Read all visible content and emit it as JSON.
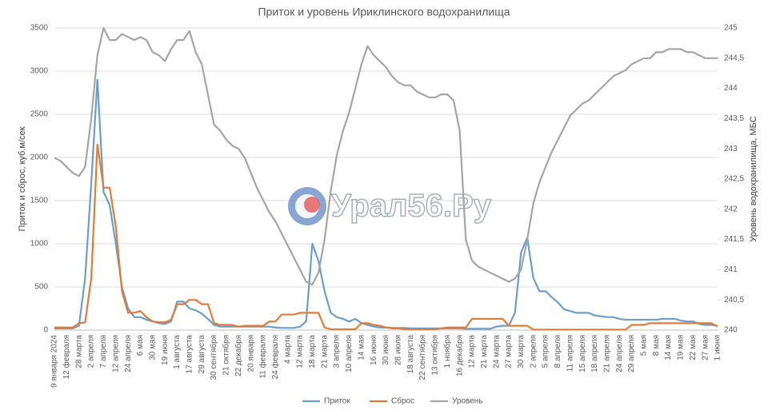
{
  "chart_data": {
    "type": "line",
    "title": "Приток и уровень Ириклинского водохранилища",
    "y_label": "Приток и сброс, куб.м/сек",
    "y2_label": "Уровень водохранилища, МБС",
    "watermark": "Урал56.Ру",
    "grid": true,
    "legend": "bottom",
    "categories": [
      "9 января 2024",
      null,
      "12 февраля",
      null,
      "28 марта",
      null,
      "2 апреля",
      null,
      "7 апреля",
      null,
      "12 апреля",
      null,
      "24 апреля",
      null,
      "6 мая",
      null,
      "30 мая",
      null,
      "19 июня",
      null,
      "1 августа",
      null,
      "17 августа",
      null,
      "29 августа",
      null,
      "30 сентября",
      null,
      "21 октября",
      null,
      "22 декабря",
      null,
      "20 января",
      null,
      "11 февраля",
      null,
      "24 февраля",
      null,
      "4 марта",
      null,
      "12 марта",
      null,
      "18 марта",
      null,
      "21 марта",
      null,
      "3 апреля",
      null,
      "10 апреля",
      null,
      "14 мая",
      null,
      "16 июня",
      null,
      "30 июня",
      null,
      "28 июля",
      null,
      "18 августа",
      null,
      "22 сентября",
      null,
      "13 октября",
      null,
      "1 ноября",
      null,
      "16 декабря",
      null,
      "12 марта",
      null,
      "21 марта",
      null,
      "24 марта",
      null,
      "27 марта",
      null,
      "30 марта",
      null,
      "2 апреля",
      null,
      "5 апреля",
      null,
      "8 апреля",
      null,
      "11 апреля",
      null,
      "15 апреля",
      null,
      "18 апреля",
      null,
      "21 апреля",
      null,
      "24 апреля",
      null,
      "29 апреля",
      null,
      "5 мая",
      null,
      "8 мая",
      null,
      "14 мая",
      null,
      "19 мая",
      null,
      "22 мая",
      null,
      "27 мая",
      null,
      "1 июня"
    ],
    "ylim": [
      0,
      3500
    ],
    "yticks": [
      0,
      500,
      1000,
      1500,
      2000,
      2500,
      3000,
      3500
    ],
    "y2lim": [
      240,
      245
    ],
    "y2ticks": [
      240,
      {
        "value": 240.5,
        "label": "240,5"
      },
      241,
      {
        "value": 241.5,
        "label": "241,5"
      },
      242,
      {
        "value": 242.5,
        "label": "242,5"
      },
      243,
      {
        "value": 243.5,
        "label": "243,5"
      },
      244,
      {
        "value": 244.5,
        "label": "244,5"
      },
      245
    ],
    "series": [
      {
        "name": "Приток",
        "color": "#6a9fcb",
        "values": [
          20,
          20,
          20,
          20,
          50,
          600,
          1700,
          2900,
          1600,
          1450,
          1000,
          500,
          250,
          150,
          150,
          120,
          100,
          80,
          70,
          100,
          330,
          330,
          250,
          230,
          190,
          130,
          60,
          40,
          40,
          40,
          40,
          40,
          40,
          40,
          40,
          40,
          30,
          25,
          25,
          25,
          40,
          100,
          1000,
          800,
          450,
          200,
          150,
          130,
          100,
          130,
          80,
          60,
          40,
          30,
          30,
          25,
          25,
          25,
          20,
          20,
          20,
          20,
          20,
          20,
          20,
          20,
          20,
          15,
          15,
          15,
          15,
          15,
          40,
          50,
          50,
          200,
          900,
          1070,
          600,
          450,
          450,
          380,
          320,
          240,
          220,
          200,
          200,
          200,
          170,
          160,
          150,
          150,
          130,
          120,
          120,
          120,
          120,
          120,
          120,
          130,
          130,
          130,
          110,
          100,
          100,
          70,
          60,
          60,
          50
        ]
      },
      {
        "name": "Сброс",
        "color": "#e07b39",
        "values": [
          30,
          30,
          30,
          30,
          80,
          90,
          600,
          2150,
          1650,
          1650,
          1200,
          450,
          200,
          200,
          220,
          150,
          100,
          90,
          90,
          120,
          300,
          300,
          350,
          350,
          300,
          300,
          80,
          60,
          60,
          60,
          40,
          50,
          50,
          50,
          50,
          100,
          100,
          180,
          180,
          180,
          200,
          200,
          200,
          200,
          30,
          10,
          10,
          10,
          10,
          10,
          80,
          80,
          60,
          50,
          30,
          20,
          20,
          10,
          10,
          10,
          10,
          10,
          10,
          20,
          30,
          30,
          30,
          30,
          130,
          130,
          130,
          130,
          130,
          130,
          50,
          50,
          50,
          50,
          5,
          5,
          5,
          5,
          5,
          5,
          5,
          5,
          5,
          5,
          5,
          5,
          5,
          5,
          5,
          5,
          60,
          60,
          60,
          80,
          80,
          80,
          80,
          80,
          80,
          80,
          80,
          80,
          80,
          80,
          40
        ]
      },
      {
        "name": "Уровень",
        "color": "#a5a5a5",
        "axis": "y2",
        "values": [
          242.85,
          242.8,
          242.7,
          242.6,
          242.55,
          242.7,
          243.5,
          244.55,
          245,
          244.8,
          244.8,
          244.9,
          244.85,
          244.8,
          244.85,
          244.8,
          244.6,
          244.55,
          244.45,
          244.65,
          244.8,
          244.8,
          244.95,
          244.6,
          244.4,
          243.9,
          243.4,
          243.3,
          243.15,
          243.05,
          243,
          242.85,
          242.6,
          242.35,
          242.15,
          241.95,
          241.8,
          241.6,
          241.4,
          241.2,
          241,
          240.8,
          240.75,
          240.95,
          241.5,
          242.3,
          242.9,
          243.3,
          243.6,
          244,
          244.4,
          244.7,
          244.55,
          244.45,
          244.35,
          244.2,
          244.1,
          244.05,
          244.05,
          243.95,
          243.9,
          243.85,
          243.85,
          243.9,
          243.9,
          243.8,
          243.3,
          241.5,
          241.15,
          241.05,
          241,
          240.95,
          240.9,
          240.85,
          240.8,
          240.85,
          241,
          241.5,
          242.1,
          242.45,
          242.7,
          242.95,
          243.15,
          243.35,
          243.55,
          243.65,
          243.75,
          243.8,
          243.9,
          244,
          244.1,
          244.2,
          244.25,
          244.3,
          244.4,
          244.45,
          244.5,
          244.5,
          244.6,
          244.6,
          244.65,
          244.65,
          244.65,
          244.6,
          244.6,
          244.55,
          244.5,
          244.5,
          244.5
        ]
      }
    ]
  }
}
